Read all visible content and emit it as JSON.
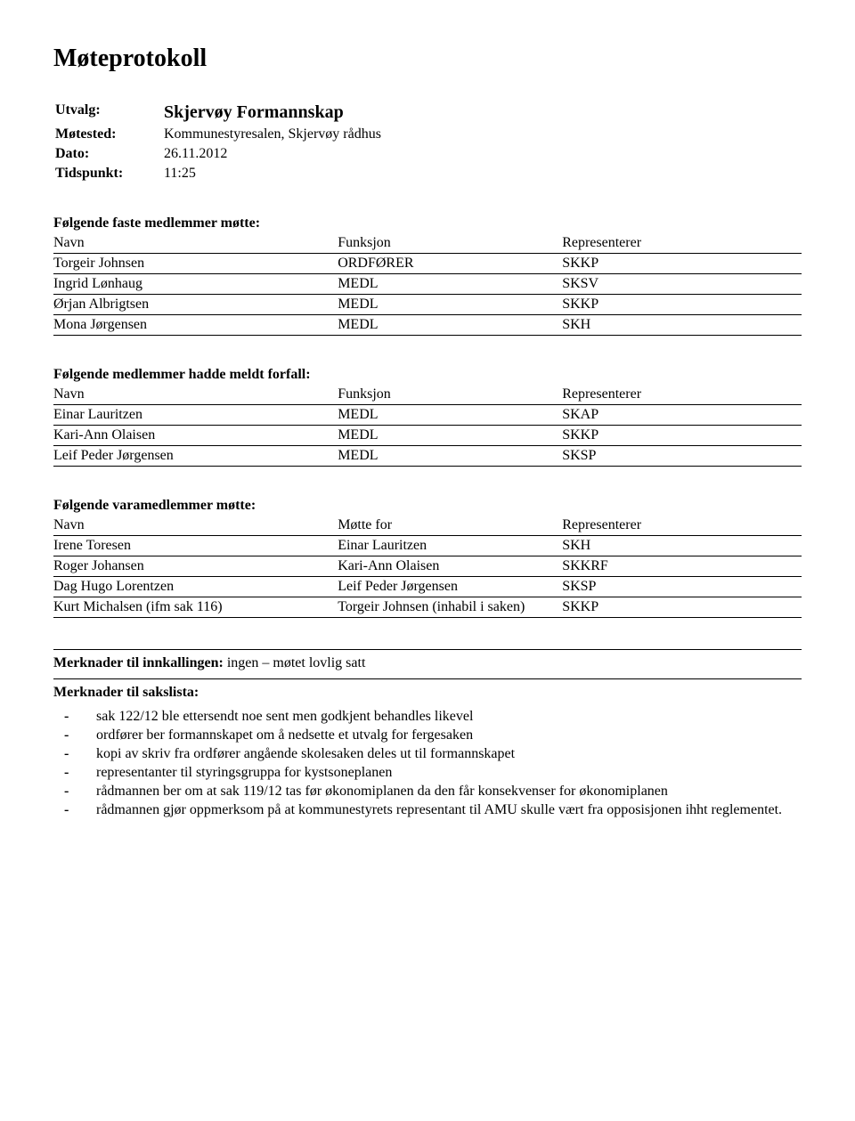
{
  "title": "Møteprotokoll",
  "meta": {
    "labels": {
      "utvalg": "Utvalg:",
      "motested": "Møtested:",
      "dato": "Dato:",
      "tidspunkt": "Tidspunkt:"
    },
    "values": {
      "utvalg": "Skjervøy Formannskap",
      "motested": "Kommunestyresalen, Skjervøy rådhus",
      "dato": "26.11.2012",
      "tidspunkt": "11:25"
    }
  },
  "sections": {
    "attendees": {
      "heading": "Følgende faste medlemmer møtte:",
      "headers": {
        "name": "Navn",
        "func": "Funksjon",
        "rep": "Representerer"
      },
      "rows": [
        {
          "name": "Torgeir Johnsen",
          "func": "ORDFØRER",
          "rep": "SKKP"
        },
        {
          "name": "Ingrid Lønhaug",
          "func": "MEDL",
          "rep": "SKSV"
        },
        {
          "name": "Ørjan Albrigtsen",
          "func": "MEDL",
          "rep": "SKKP"
        },
        {
          "name": "Mona Jørgensen",
          "func": "MEDL",
          "rep": "SKH"
        }
      ]
    },
    "absent": {
      "heading": "Følgende medlemmer hadde meldt forfall:",
      "headers": {
        "name": "Navn",
        "func": "Funksjon",
        "rep": "Representerer"
      },
      "rows": [
        {
          "name": "Einar Lauritzen",
          "func": "MEDL",
          "rep": "SKAP"
        },
        {
          "name": "Kari-Ann Olaisen",
          "func": "MEDL",
          "rep": "SKKP"
        },
        {
          "name": "Leif Peder Jørgensen",
          "func": "MEDL",
          "rep": "SKSP"
        }
      ]
    },
    "subs": {
      "heading": "Følgende varamedlemmer møtte:",
      "headers": {
        "name": "Navn",
        "for": "Møtte for",
        "rep": "Representerer"
      },
      "rows": [
        {
          "name": "Irene Toresen",
          "for": "Einar Lauritzen",
          "rep": "SKH"
        },
        {
          "name": "Roger Johansen",
          "for": "Kari-Ann Olaisen",
          "rep": "SKKRF"
        },
        {
          "name": "Dag Hugo Lorentzen",
          "for": "Leif Peder Jørgensen",
          "rep": "SKSP"
        },
        {
          "name": "Kurt Michalsen (ifm sak 116)",
          "for": "Torgeir Johnsen (inhabil i saken)",
          "rep": "SKKP"
        }
      ]
    }
  },
  "remarks": {
    "call_label": "Merknader til innkallingen:",
    "call_text": " ingen – møtet lovlig satt",
    "list_label": "Merknader til sakslista:",
    "items": [
      "sak 122/12 ble ettersendt noe sent men godkjent behandles likevel",
      "ordfører ber formannskapet om å nedsette et utvalg for fergesaken",
      "kopi av skriv fra ordfører angående skolesaken deles ut til formannskapet",
      "representanter til styringsgruppa for kystsoneplanen",
      "rådmannen ber om at sak 119/12 tas før økonomiplanen da den får konsekvenser for økonomiplanen",
      "rådmannen gjør oppmerksom på at kommunestyrets representant til AMU skulle vært fra opposisjonen ihht reglementet."
    ]
  }
}
